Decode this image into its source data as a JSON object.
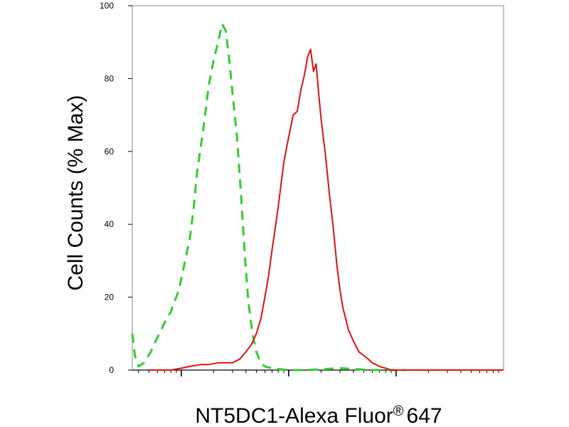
{
  "chart_data": {
    "type": "line",
    "title": "",
    "xlabel": "NT5DC1-Alexa Fluor",
    "xlabel_superscript": "®",
    "xlabel_suffix": "647",
    "ylabel": "Cell Counts (% Max)",
    "xscale": "log",
    "xlim": [
      0.35,
      1000
    ],
    "ylim": [
      0,
      100
    ],
    "yticks": [
      0,
      20,
      40,
      60,
      80,
      100
    ],
    "ytick_labels": [
      "0",
      "20",
      "40",
      "60",
      "80",
      "100"
    ],
    "grid": false,
    "legend": "none",
    "series": [
      {
        "color": "#33cc33",
        "dash": "dashed",
        "x": [
          0.35,
          0.37,
          0.4,
          0.45,
          0.52,
          0.6,
          0.7,
          0.8,
          0.95,
          1.05,
          1.2,
          1.3,
          1.4,
          1.6,
          1.8,
          2.0,
          2.2,
          2.4,
          2.6,
          2.8,
          3.0,
          3.3,
          3.6,
          3.9,
          4.2,
          4.6,
          5.0,
          5.5,
          6.0,
          7.0,
          8.0,
          10,
          15,
          30,
          60,
          120
        ],
        "y": [
          10,
          4,
          1,
          2,
          5,
          9,
          13,
          16,
          22,
          28,
          36,
          44,
          54,
          66,
          78,
          85,
          90,
          95,
          93,
          85,
          76,
          64,
          48,
          32,
          19,
          10,
          5,
          2,
          1,
          0.5,
          0.3,
          0,
          0,
          0.5,
          0,
          0
        ]
      },
      {
        "color": "#dd1111",
        "dash": "solid",
        "x": [
          0.5,
          0.8,
          1.0,
          1.2,
          1.5,
          1.8,
          2.2,
          2.6,
          3.0,
          3.5,
          4.0,
          4.5,
          5.0,
          5.5,
          6.0,
          6.5,
          7.0,
          7.5,
          8.0,
          9.0,
          10,
          11,
          12,
          13,
          14,
          15,
          16,
          17,
          18,
          19,
          20,
          22,
          24,
          26,
          28,
          30,
          32,
          34,
          36,
          40,
          45,
          50,
          55,
          60,
          70,
          80,
          90,
          110,
          140,
          200,
          300,
          500,
          1000
        ],
        "y": [
          0,
          0,
          0.5,
          1,
          1.5,
          1.5,
          2,
          2,
          2,
          3,
          5,
          7,
          10,
          14,
          20,
          26,
          33,
          39,
          45,
          57,
          64,
          70,
          71,
          77,
          81,
          86,
          88,
          82,
          84,
          76,
          69,
          59,
          48,
          39,
          29,
          22,
          17,
          14,
          11,
          8,
          5,
          4,
          3,
          2,
          1,
          0.5,
          0,
          0,
          0,
          0,
          0,
          0,
          0
        ]
      }
    ]
  }
}
